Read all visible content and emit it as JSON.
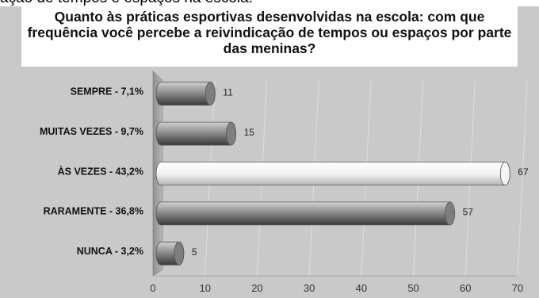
{
  "top_fragment": "ação de tempos e espaços na escola.",
  "chart_data": {
    "type": "bar",
    "orientation": "horizontal",
    "title": "Quanto às práticas esportivas desenvolvidas na escola: com que frequência você percebe a reivindicação de tempos ou espaços por parte das meninas?",
    "categories": [
      "SEMPRE - 7,1%",
      "MUITAS VEZES - 9,7%",
      "ÀS VEZES - 43,2%",
      "RARAMENTE - 36,8%",
      "NUNCA - 3,2%"
    ],
    "values": [
      11,
      15,
      67,
      57,
      5
    ],
    "data_labels": [
      "11",
      "15",
      "67",
      "57",
      "5"
    ],
    "xlim": [
      0,
      70
    ],
    "ticks": [
      "0",
      "10",
      "20",
      "30",
      "40",
      "50",
      "60",
      "70"
    ],
    "grid": true,
    "legend": "none",
    "colors": {
      "frame": "#c9c9c9",
      "bar_dark": "#8a8a8a",
      "bar_light": "#ececec",
      "wall": "#a9a9a9"
    }
  }
}
